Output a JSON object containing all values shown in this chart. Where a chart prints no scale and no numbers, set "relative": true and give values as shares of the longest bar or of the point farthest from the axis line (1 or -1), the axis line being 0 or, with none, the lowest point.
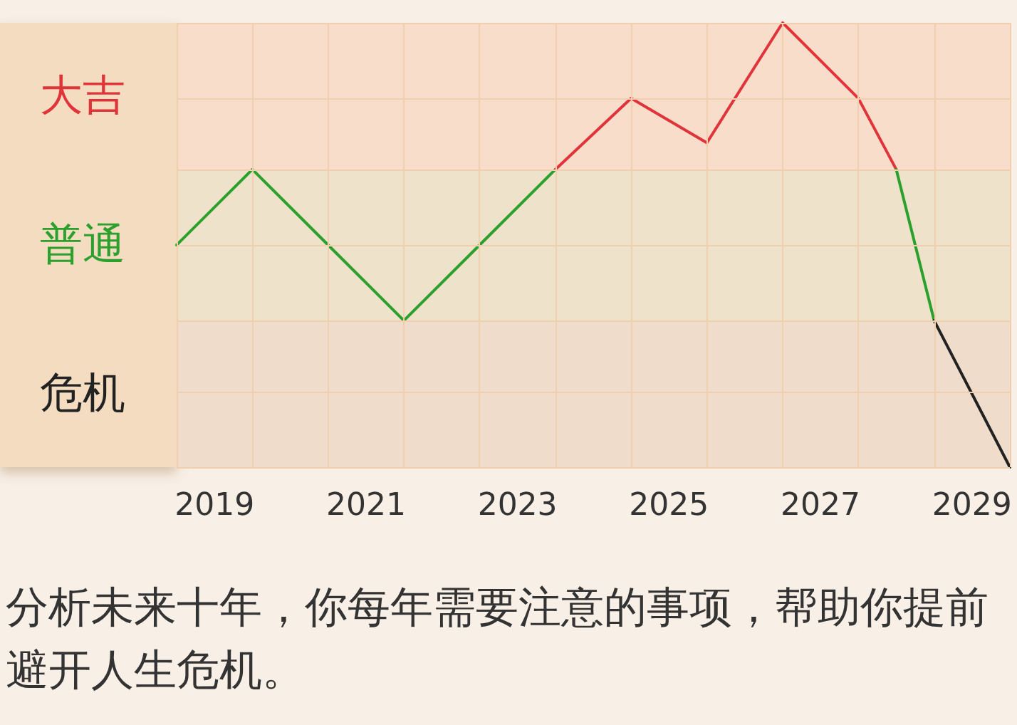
{
  "chart_data": {
    "type": "line",
    "relative": true,
    "annotations": [
      "分析未来十年，你每年需要注意的事项，帮助你提前避开人生危机。"
    ],
    "xlim": [
      2018.5,
      2029.5
    ],
    "xticks": [
      {
        "value": 2018.5,
        "label": null
      },
      2019,
      {
        "value": 2019.5,
        "label": null
      },
      {
        "value": 2020.5,
        "label": null
      },
      2021,
      {
        "value": 2021.5,
        "label": null
      },
      {
        "value": 2022.5,
        "label": null
      },
      2023,
      {
        "value": 2023.5,
        "label": null
      },
      {
        "value": 2024.5,
        "label": null
      },
      2025,
      {
        "value": 2025.5,
        "label": null
      },
      {
        "value": 2026.5,
        "label": null
      },
      2027,
      {
        "value": 2027.5,
        "label": null
      },
      {
        "value": 2028.5,
        "label": null
      },
      2029,
      {
        "value": 2029.5,
        "label": null
      }
    ],
    "bands": [
      {
        "axis": "y",
        "from": 0.67,
        "to": 1,
        "label": "大吉",
        "color": "#e0343a"
      },
      {
        "axis": "y",
        "from": 0.33,
        "to": 0.67,
        "label": "普通",
        "color": "#2ca02c"
      },
      {
        "axis": "y",
        "from": 0,
        "to": 0.33,
        "label": "危机",
        "color": "#222222"
      }
    ],
    "grid": true,
    "marker": "none",
    "line_style": "solid",
    "series": [
      {
        "color": "#2ca02c",
        "x": [
          2018.5,
          2019.5,
          2020.5,
          2021.5,
          2022.5,
          2023.5
        ],
        "values": [
          0.5,
          0.67,
          0.5,
          0.33,
          0.5,
          0.67
        ]
      },
      {
        "color": "#e0343a",
        "x": [
          2023.5,
          2024.5,
          2025.5,
          2026.5,
          2027.5,
          2028.0
        ],
        "values": [
          0.67,
          0.83,
          0.73,
          1,
          0.83,
          0.67
        ]
      },
      {
        "color": "#2ca02c",
        "x": [
          2028.0,
          2028.5
        ],
        "values": [
          0.67,
          0.33
        ]
      },
      {
        "color": "#222222",
        "x": [
          2028.5,
          2029.5
        ],
        "values": [
          0.33,
          0
        ]
      }
    ]
  }
}
